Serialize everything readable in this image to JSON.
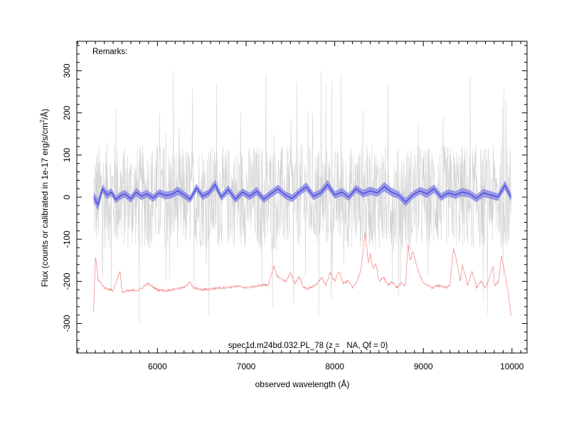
{
  "chart_data": {
    "type": "line",
    "title": "spec1d.m24bd.032.PL_78 (z =   NA, Qf = 0)",
    "remarks_label": "Remarks:",
    "xlabel": "observed wavelength (Å)",
    "ylabel_main": "Flux (counts or calibrated in 1e-17 erg/s/cm",
    "ylabel_sup": "2",
    "ylabel_tail": "/Å)",
    "xlim": [
      5090,
      10170
    ],
    "ylim": [
      -370,
      370
    ],
    "x_ticks": [
      6000,
      7000,
      8000,
      9000,
      10000
    ],
    "y_ticks": [
      -300,
      -200,
      -100,
      0,
      100,
      200,
      300
    ],
    "x_minor_step": 100,
    "y_minor_step": 20,
    "grid": false,
    "colors": {
      "raw_flux": "#d3d3d3",
      "smoothed_flux": "#3030d8",
      "smoothed_band": "#8c8ce6",
      "sky_spectrum": "#f08080",
      "axis": "#000000"
    },
    "series": [
      {
        "kind": "raw_flux",
        "x": [
          5280,
          5500,
          5750,
          6000,
          6250,
          6500,
          6750,
          7000,
          7250,
          7500,
          7750,
          8000,
          8250,
          8500,
          8750,
          9000,
          9250,
          9500,
          9750,
          9990
        ],
        "y": [
          0,
          5,
          -3,
          4,
          -2,
          3,
          0,
          2,
          -4,
          1,
          3,
          -2,
          0,
          2,
          -5,
          -1,
          3,
          0,
          2,
          0
        ],
        "y_lower": [
          -130,
          -140,
          -120,
          -130,
          -125,
          -135,
          -130,
          -120,
          -140,
          -125,
          -130,
          -120,
          -135,
          -125,
          -140,
          -130,
          -125,
          -130,
          -120,
          -130
        ],
        "y_upper": [
          140,
          130,
          135,
          140,
          130,
          130,
          125,
          135,
          140,
          130,
          135,
          130,
          125,
          140,
          130,
          135,
          130,
          140,
          135,
          140
        ]
      },
      {
        "kind": "smoothed_flux",
        "x": [
          5280,
          5330,
          5380,
          5430,
          5480,
          5530,
          5580,
          5630,
          5700,
          5760,
          5820,
          5880,
          5950,
          6020,
          6090,
          6160,
          6230,
          6300,
          6370,
          6440,
          6510,
          6580,
          6650,
          6720,
          6800,
          6880,
          6960,
          7040,
          7120,
          7200,
          7280,
          7360,
          7440,
          7520,
          7600,
          7680,
          7760,
          7840,
          7920,
          8000,
          8080,
          8160,
          8240,
          8320,
          8400,
          8480,
          8560,
          8640,
          8720,
          8800,
          8880,
          8960,
          9040,
          9120,
          9200,
          9280,
          9360,
          9440,
          9520,
          9600,
          9680,
          9760,
          9840,
          9920,
          9990
        ],
        "y": [
          0,
          -18,
          20,
          5,
          12,
          -6,
          3,
          8,
          -4,
          12,
          2,
          8,
          -2,
          10,
          4,
          6,
          15,
          5,
          -5,
          22,
          2,
          10,
          30,
          0,
          18,
          -5,
          12,
          2,
          14,
          -5,
          8,
          20,
          5,
          -3,
          12,
          25,
          2,
          10,
          30,
          5,
          12,
          0,
          20,
          8,
          15,
          10,
          25,
          12,
          5,
          -12,
          5,
          15,
          8,
          20,
          0,
          10,
          5,
          12,
          8,
          -3,
          10,
          5,
          0,
          28,
          0
        ],
        "band_halfwidth": [
          12,
          14,
          10,
          10,
          9,
          9,
          9,
          9,
          9,
          10,
          9,
          9,
          9,
          9,
          9,
          9,
          10,
          9,
          9,
          10,
          9,
          9,
          11,
          9,
          10,
          9,
          9,
          9,
          10,
          9,
          9,
          10,
          9,
          9,
          9,
          10,
          9,
          9,
          11,
          9,
          10,
          9,
          9,
          9,
          10,
          9,
          11,
          10,
          9,
          10,
          9,
          9,
          10,
          10,
          9,
          9,
          9,
          10,
          9,
          9,
          10,
          9,
          9,
          11,
          10
        ]
      },
      {
        "kind": "sky_spectrum",
        "x": [
          5280,
          5300,
          5330,
          5400,
          5500,
          5577,
          5600,
          5700,
          5800,
          5890,
          6000,
          6100,
          6200,
          6300,
          6364,
          6400,
          6500,
          6600,
          6700,
          6800,
          6900,
          7000,
          7100,
          7200,
          7250,
          7280,
          7316,
          7340,
          7370,
          7400,
          7450,
          7500,
          7550,
          7600,
          7650,
          7700,
          7750,
          7800,
          7850,
          7900,
          7950,
          8000,
          8050,
          8100,
          8150,
          8200,
          8250,
          8300,
          8344,
          8380,
          8400,
          8430,
          8465,
          8500,
          8550,
          8600,
          8650,
          8700,
          8750,
          8800,
          8827,
          8850,
          8885,
          8920,
          8950,
          9000,
          9050,
          9100,
          9150,
          9200,
          9250,
          9300,
          9340,
          9375,
          9420,
          9440,
          9500,
          9550,
          9600,
          9650,
          9700,
          9750,
          9790,
          9800,
          9850,
          9880,
          9920,
          9960,
          9990
        ],
        "y": [
          -270,
          -140,
          -195,
          -215,
          -222,
          -175,
          -225,
          -222,
          -220,
          -205,
          -220,
          -222,
          -218,
          -215,
          -200,
          -215,
          -220,
          -218,
          -215,
          -214,
          -212,
          -215,
          -212,
          -208,
          -210,
          -185,
          -165,
          -185,
          -190,
          -195,
          -200,
          -180,
          -205,
          -188,
          -215,
          -218,
          -212,
          -208,
          -190,
          -210,
          -180,
          -200,
          -175,
          -205,
          -200,
          -215,
          -200,
          -170,
          -80,
          -160,
          -130,
          -170,
          -160,
          -200,
          -190,
          -210,
          -200,
          -215,
          -205,
          -210,
          -110,
          -150,
          -130,
          -160,
          -180,
          -205,
          -210,
          -215,
          -210,
          -212,
          -215,
          -210,
          -120,
          -150,
          -200,
          -160,
          -210,
          -175,
          -215,
          -200,
          -215,
          -190,
          -160,
          -210,
          -200,
          -140,
          -180,
          -230,
          -280
        ]
      }
    ]
  }
}
